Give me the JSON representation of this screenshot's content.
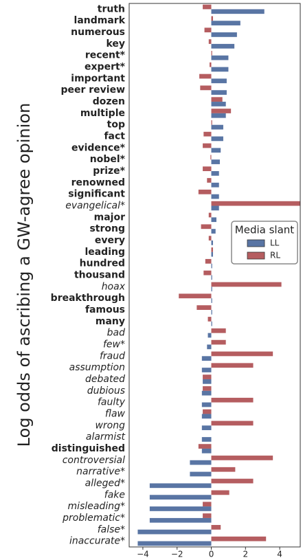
{
  "chart_data": {
    "type": "grouped-hbar",
    "ylabel": "Log odds of ascribing a GW-agree opinion",
    "categories": [
      "truth",
      "landmark",
      "numerous",
      "key",
      "recent*",
      "expert*",
      "important",
      "peer review",
      "dozen",
      "multiple",
      "top",
      "fact",
      "evidence*",
      "nobel*",
      "prize*",
      "renowned",
      "significant",
      "evangelical*",
      "major",
      "strong",
      "every",
      "leading",
      "hundred",
      "thousand",
      "hoax",
      "breakthrough",
      "famous",
      "many",
      "bad",
      "few*",
      "fraud",
      "assumption",
      "debated",
      "dubious",
      "faulty",
      "flaw",
      "wrong",
      "alarmist",
      "distinguished",
      "controversial",
      "narrative*",
      "alleged*",
      "fake",
      "misleading*",
      "problematic*",
      "false*",
      "inaccurate*"
    ],
    "label_styles": [
      "bold",
      "bold",
      "bold",
      "bold",
      "bold",
      "bold",
      "bold",
      "bold",
      "bold",
      "bold",
      "bold",
      "bold",
      "bold",
      "bold",
      "bold",
      "bold",
      "bold",
      "italic",
      "bold",
      "bold",
      "bold",
      "bold",
      "bold",
      "bold",
      "italic",
      "bold",
      "bold",
      "bold",
      "italic",
      "italic",
      "italic",
      "italic",
      "italic",
      "italic",
      "italic",
      "italic",
      "italic",
      "italic",
      "bold",
      "italic",
      "italic",
      "italic",
      "italic",
      "italic",
      "italic",
      "italic",
      "italic"
    ],
    "series": [
      {
        "name": "LL",
        "color": "#5975a4",
        "values": [
          3.1,
          1.7,
          1.5,
          1.35,
          1.0,
          1.0,
          0.9,
          0.9,
          0.85,
          0.85,
          0.7,
          0.7,
          0.55,
          0.5,
          0.45,
          0.45,
          0.45,
          0.45,
          0.3,
          0.25,
          0.1,
          0.1,
          0.05,
          0.05,
          0.05,
          0.05,
          0.05,
          0.05,
          -0.2,
          -0.25,
          -0.55,
          -0.55,
          -0.5,
          -0.55,
          -0.55,
          -0.55,
          -0.55,
          -0.55,
          -0.55,
          -1.25,
          -1.25,
          -3.6,
          -3.6,
          -3.6,
          -3.6,
          -4.3,
          -4.3
        ]
      },
      {
        "name": "RL",
        "color": "#b55d60",
        "values": [
          -0.5,
          0.1,
          -0.4,
          -0.15,
          0.05,
          -0.1,
          -0.7,
          -0.65,
          0.65,
          1.15,
          0.05,
          -0.45,
          -0.5,
          -0.05,
          -0.5,
          -0.25,
          -0.75,
          5.2,
          -0.15,
          -0.6,
          -0.15,
          0.1,
          -0.35,
          -0.45,
          4.1,
          -1.9,
          -0.85,
          -0.2,
          0.85,
          0.85,
          3.6,
          2.45,
          -0.5,
          -0.5,
          2.45,
          -0.5,
          2.45,
          0,
          -0.75,
          3.6,
          1.4,
          2.45,
          1.05,
          -0.5,
          -0.5,
          0.55,
          3.2
        ]
      }
    ],
    "xlim": [
      -4.8,
      5.2
    ],
    "xticks": [
      {
        "value": -4,
        "label": "−4"
      },
      {
        "value": -2,
        "label": "−2"
      },
      0,
      2,
      4
    ],
    "legend": {
      "title": "Media slant",
      "position": "right"
    }
  }
}
